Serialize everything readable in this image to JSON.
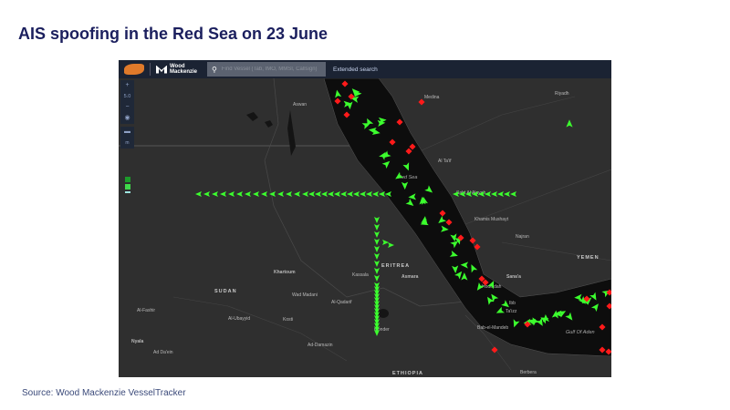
{
  "title": "AIS spoofing in the Red Sea on 23 June",
  "source": "Source: Wood Mackenzie VesselTracker",
  "toolbar": {
    "brand_line1": "Wood",
    "brand_line2": "Mackenzie",
    "search_placeholder": "Find Vessel (Tab, IMO, MMSI, Callsign)",
    "extended_search": "Extended search"
  },
  "controls": {
    "zoom_in": "+",
    "zoom_level": "5.0",
    "zoom_out": "−"
  },
  "colors": {
    "ship_normal": "#3cff2e",
    "ship_flagged": "#ff1a1a",
    "sea": "#0d0d0d",
    "land": "#2f2f2f",
    "toolbar": "#1b2333"
  },
  "map_labels": {
    "cities": [
      "Aswan",
      "Medina",
      "Riyadh",
      "Al Ta'if",
      "Sabt Al Alayah",
      "Khamis Mushayt",
      "Najran",
      "Khartoum",
      "Kassala",
      "Asmara",
      "Sana'a",
      "Wad Madani",
      "Al-Qadarif",
      "Al-Fashir",
      "Al-Ubayyid",
      "Kosti",
      "Nyala",
      "Ad Da'ein",
      "Gonder",
      "Ad-Damazin",
      "Hodeidah",
      "Ibb",
      "Ta'izz",
      "Bab-el-Mandeb",
      "Berbera"
    ],
    "countries": [
      "SUDAN",
      "ERITREA",
      "YEMEN",
      "ETHIOPIA"
    ],
    "seas": [
      "Red Sea",
      "Gulf Of Aden"
    ]
  }
}
